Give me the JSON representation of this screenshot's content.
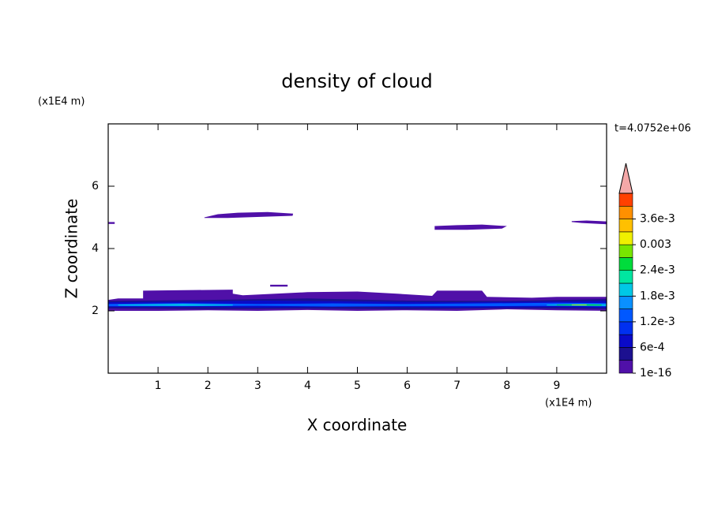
{
  "chart_data": {
    "type": "contour",
    "title": "density of cloud",
    "time_label": "t=4.0752e+06",
    "x_label": "X coordinate",
    "y_label": "Z coordinate",
    "x_unit": "(x1E4 m)",
    "y_unit": "(x1E4 m)",
    "xlim": [
      0,
      10
    ],
    "ylim": [
      0,
      8
    ],
    "xticks": [
      1,
      2,
      3,
      4,
      5,
      6,
      7,
      8,
      9
    ],
    "yticks": [
      2,
      4,
      6
    ],
    "levels": [
      1e-16,
      0.0003,
      0.0006,
      0.0009,
      0.0012,
      0.0015,
      0.0018,
      0.0021,
      0.0024,
      0.0027,
      0.003,
      0.0033,
      0.0036,
      0.0039,
      0.0042
    ],
    "colors": [
      "#5010a8",
      "#1c1090",
      "#0a0ac8",
      "#0030f0",
      "#0058ff",
      "#0a90ff",
      "#00c8e6",
      "#00e6a0",
      "#00dc3c",
      "#78e600",
      "#f0f000",
      "#ffc000",
      "#ff9000",
      "#ff4000"
    ],
    "extend_color": "#f4a8a8",
    "colorbar_ticks": [
      {
        "value": 1e-16,
        "label": "1e-16"
      },
      {
        "value": 0.0006,
        "label": "6e-4"
      },
      {
        "value": 0.0012,
        "label": "1.2e-3"
      },
      {
        "value": 0.0018,
        "label": "1.8e-3"
      },
      {
        "value": 0.0024,
        "label": "2.4e-3"
      },
      0.003,
      {
        "value": 0.0036,
        "label": "3.6e-3"
      }
    ],
    "regions": [
      {
        "value": 1e-16,
        "x": [
          1.93,
          2.2,
          2.6,
          3.2,
          3.71,
          3.7,
          3.1,
          2.4,
          1.93
        ],
        "z": [
          5.0,
          5.1,
          5.15,
          5.17,
          5.12,
          5.05,
          5.02,
          4.98,
          4.98
        ]
      },
      {
        "value": 1e-16,
        "x": [
          6.55,
          7.0,
          7.5,
          8.0,
          7.9,
          7.2,
          6.55
        ],
        "z": [
          4.72,
          4.75,
          4.77,
          4.72,
          4.64,
          4.6,
          4.6
        ]
      },
      {
        "value": 1e-16,
        "x": [
          9.3,
          9.6,
          10,
          10,
          9.5,
          9.3
        ],
        "z": [
          4.88,
          4.9,
          4.87,
          4.78,
          4.82,
          4.85
        ]
      },
      {
        "value": 1e-16,
        "x": [
          0,
          0.13,
          0.13,
          0
        ],
        "z": [
          4.85,
          4.85,
          4.79,
          4.79
        ]
      },
      {
        "value": 1e-16,
        "x": [
          3.25,
          3.6,
          3.6,
          3.25
        ],
        "z": [
          2.84,
          2.84,
          2.78,
          2.78
        ]
      },
      {
        "value": 1e-16,
        "x": [
          0,
          0.2,
          0.7,
          0.7,
          2.5,
          2.5,
          2.7,
          4.0,
          5.0,
          5.8,
          6.5,
          6.6,
          7.5,
          7.6,
          8.5,
          9.0,
          10,
          10,
          9.0,
          8.0,
          7.0,
          6.0,
          5.0,
          4.0,
          3.0,
          2.0,
          1.0,
          0
        ],
        "z": [
          2.35,
          2.4,
          2.4,
          2.65,
          2.68,
          2.55,
          2.5,
          2.6,
          2.62,
          2.55,
          2.48,
          2.65,
          2.65,
          2.45,
          2.42,
          2.45,
          2.45,
          2.0,
          2.02,
          2.05,
          2.0,
          2.02,
          2.0,
          2.03,
          2.0,
          2.02,
          2.0,
          2.0
        ]
      },
      {
        "value": 0.0003,
        "x": [
          0,
          2,
          4,
          6,
          8,
          10,
          10,
          8,
          6,
          4,
          2,
          0
        ],
        "z": [
          2.32,
          2.35,
          2.4,
          2.33,
          2.32,
          2.38,
          2.06,
          2.08,
          2.05,
          2.07,
          2.05,
          2.08
        ]
      },
      {
        "value": 0.0006,
        "x": [
          0,
          2,
          3,
          5,
          7,
          9,
          10,
          10,
          9,
          7,
          5,
          3,
          2,
          0
        ],
        "z": [
          2.28,
          2.3,
          2.33,
          2.3,
          2.28,
          2.3,
          2.32,
          2.1,
          2.12,
          2.1,
          2.13,
          2.1,
          2.12,
          2.12
        ]
      },
      {
        "value": 0.0012,
        "x": [
          0,
          1.5,
          3,
          4.5,
          6,
          7.5,
          9,
          10,
          10,
          9,
          7.5,
          6,
          4.5,
          3,
          1.5,
          0
        ],
        "z": [
          2.22,
          2.25,
          2.22,
          2.24,
          2.22,
          2.24,
          2.26,
          2.25,
          2.14,
          2.16,
          2.15,
          2.15,
          2.14,
          2.16,
          2.15,
          2.15
        ]
      },
      {
        "value": 0.0018,
        "x": [
          0.2,
          1.5,
          2.5,
          2.5,
          1.5,
          0.2
        ],
        "z": [
          2.2,
          2.22,
          2.2,
          2.17,
          2.16,
          2.17
        ]
      },
      {
        "value": 0.0018,
        "x": [
          8.8,
          9.5,
          10,
          10,
          9.5,
          8.8
        ],
        "z": [
          2.2,
          2.22,
          2.21,
          2.16,
          2.16,
          2.17
        ]
      },
      {
        "value": 0.0024,
        "x": [
          9.0,
          9.6,
          9.9,
          9.9,
          9.6,
          9.0
        ],
        "z": [
          2.2,
          2.21,
          2.2,
          2.17,
          2.17,
          2.18
        ]
      },
      {
        "value": 0.003,
        "x": [
          9.3,
          9.6,
          9.6,
          9.3
        ],
        "z": [
          2.2,
          2.2,
          2.18,
          2.18
        ]
      }
    ]
  }
}
